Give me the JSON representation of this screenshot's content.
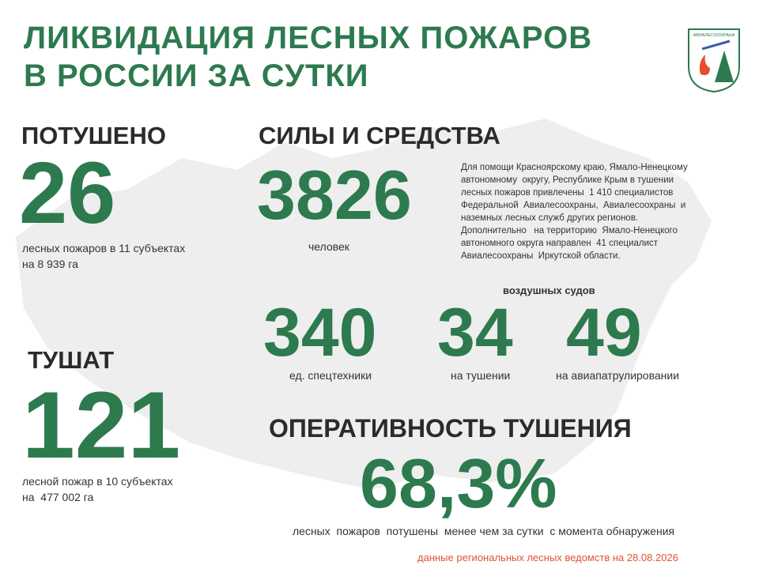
{
  "header": {
    "title_line1": "ЛИКВИДАЦИЯ ЛЕСНЫХ ПОЖАРОВ",
    "title_line2": "В РОССИИ ЗА СУТКИ",
    "logo_text": "АВИАЛЕСООХРАНА"
  },
  "extinguished": {
    "heading": "ПОТУШЕНО",
    "number": "26",
    "caption_line1": "лесных пожаров в 11 субъектах",
    "caption_line2": "на 8 939 га"
  },
  "ongoing": {
    "heading": "ТУШАТ",
    "number": "121",
    "caption_line1": "лесной пожар в 10 субъектах",
    "caption_line2": "на  477 002 га"
  },
  "forces": {
    "heading": "СИЛЫ И СРЕДСТВА",
    "people": "3826",
    "people_caption": "человек",
    "note": [
      "Для помощи Красноярскому краю, Ямало-Ненецкому",
      "автономному  округу, Республике Крым в тушении",
      "лесных пожаров привлечены  1 410 специалистов",
      "Федеральной  Авиалесоохраны,  Авиалесоохраны  и",
      "наземных лесных служб других регионов.",
      "Дополнительно   на территорию  Ямало-Ненецкого",
      "автономного округа направлен  41 специалист",
      "Авиалесоохраны  Иркутской области."
    ],
    "aircraft_heading": "воздушных судов",
    "equipment": "340",
    "equipment_caption": "ед. спецтехники",
    "aircraft_extinguishing": "34",
    "aircraft_extinguishing_caption": "на тушении",
    "aircraft_patrol": "49",
    "aircraft_patrol_caption": "на авиапатрулировании"
  },
  "efficiency": {
    "heading": "ОПЕРАТИВНОСТЬ ТУШЕНИЯ",
    "value": "68,3%",
    "caption": "лесных  пожаров  потушены  менее чем за сутки  с момента обнаружения"
  },
  "footer": {
    "source": "данные региональных лесных ведомств на 28.08.2026"
  }
}
